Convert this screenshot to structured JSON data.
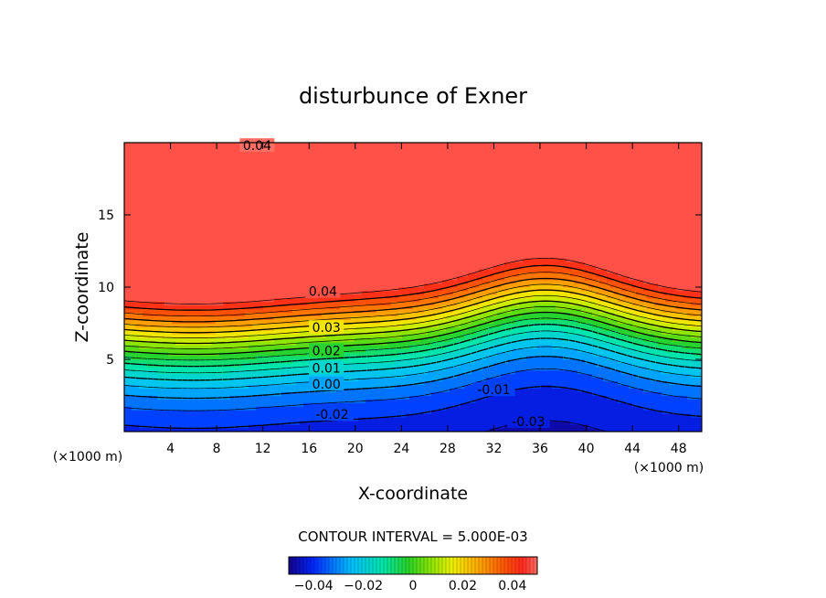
{
  "chart_data": {
    "type": "contour",
    "title": "disturbunce of Exner",
    "xlabel": "X-coordinate",
    "ylabel": "Z-coordinate",
    "x_unit": "(×1000 m)",
    "z_unit": "(×1000 m)",
    "xlim": [
      0,
      50
    ],
    "ylim": [
      0,
      20
    ],
    "x_ticks": [
      4,
      8,
      12,
      16,
      20,
      24,
      28,
      32,
      36,
      40,
      44,
      48
    ],
    "y_ticks": [
      5,
      10,
      15
    ],
    "contour_interval_text": "CONTOUR INTERVAL = 5.000E-03",
    "contour_interval": 0.005,
    "value_range": [
      -0.05,
      0.05
    ],
    "contour_labels": [
      {
        "text": "0.04",
        "x": 11.5,
        "z": 19.8
      },
      {
        "text": "0.04",
        "x": 17.2,
        "z": 9.7
      },
      {
        "text": "0.03",
        "x": 17.5,
        "z": 7.2
      },
      {
        "text": "0.02",
        "x": 17.5,
        "z": 5.6
      },
      {
        "text": "0.01",
        "x": 17.5,
        "z": 4.4
      },
      {
        "text": "0.00",
        "x": 17.5,
        "z": 3.3
      },
      {
        "text": "-0.01",
        "x": 32.0,
        "z": 2.9
      },
      {
        "text": "-0.02",
        "x": 18.0,
        "z": 1.2
      },
      {
        "text": "-0.03",
        "x": 35.0,
        "z": 0.7
      }
    ],
    "colorbar": {
      "ticks": [
        -0.04,
        -0.02,
        0,
        0.02,
        0.04
      ],
      "tick_labels": [
        "−0.04",
        "−0.02",
        "0",
        "0.02",
        "0.04"
      ]
    }
  }
}
